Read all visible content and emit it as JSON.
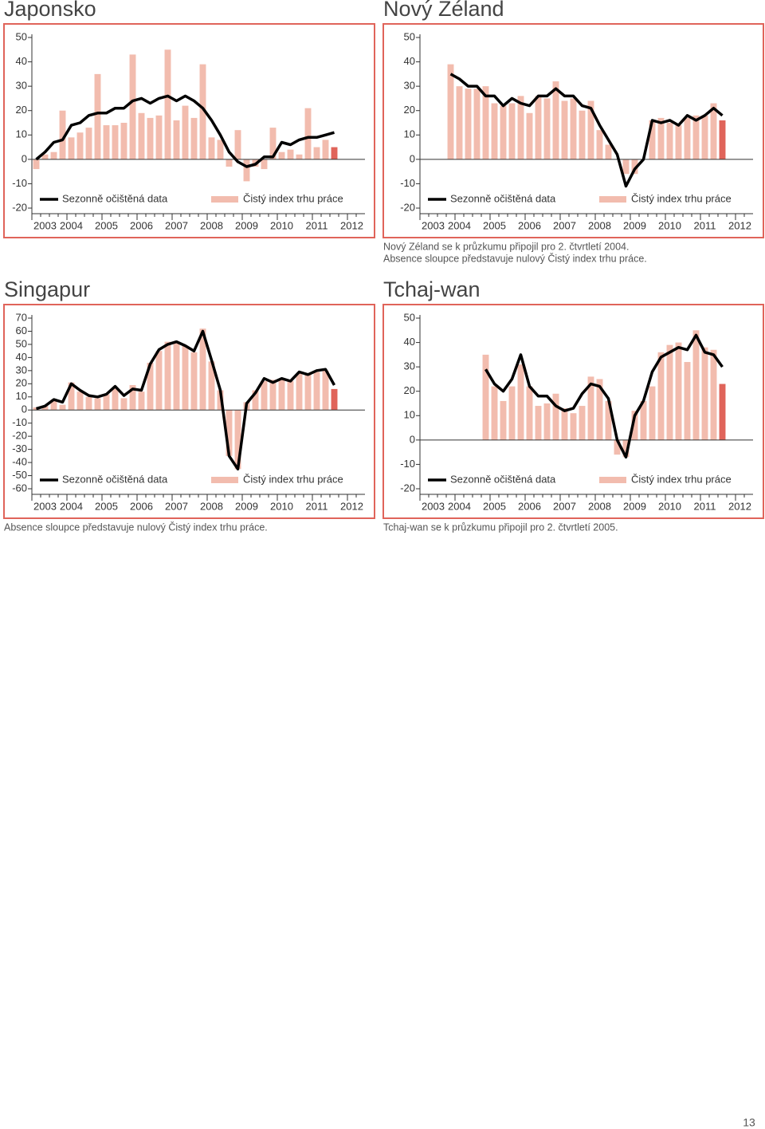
{
  "chart_data": [
    {
      "type": "bar_line",
      "title": "Japonsko",
      "categories": [
        null,
        "2003",
        null,
        null,
        "2004",
        null,
        null,
        null,
        "2005",
        null,
        null,
        null,
        "2006",
        null,
        null,
        null,
        "2007",
        null,
        null,
        null,
        "2008",
        null,
        null,
        null,
        "2009",
        null,
        null,
        null,
        "2010",
        null,
        null,
        null,
        "2011",
        null,
        null,
        null,
        "2012",
        null
      ],
      "ylim": [
        -20,
        50
      ],
      "yticks": [
        -20,
        -10,
        0,
        10,
        20,
        30,
        40,
        50
      ],
      "last_bar_color": "#e0645a",
      "series": [
        {
          "name": "Sezonně očištěná data",
          "kind": "line",
          "color": "#000000",
          "values": [
            0,
            3,
            7,
            8,
            14,
            15,
            18,
            19,
            19,
            21,
            21,
            24,
            25,
            23,
            25,
            26,
            24,
            26,
            24,
            21,
            16,
            10,
            3,
            -1,
            -3,
            -2,
            1,
            1,
            7,
            6,
            8,
            9,
            9,
            10,
            11,
            null,
            null,
            null
          ]
        },
        {
          "name": "Čistý index trhu práce",
          "kind": "bar",
          "color": "#f2bcae",
          "values": [
            -4,
            2,
            3,
            20,
            9,
            11,
            13,
            35,
            14,
            14,
            15,
            43,
            19,
            17,
            18,
            45,
            16,
            22,
            17,
            39,
            9,
            8,
            -3,
            12,
            -9,
            -3,
            -4,
            13,
            3,
            4,
            2,
            21,
            5,
            8,
            5,
            null,
            null,
            null
          ]
        }
      ]
    },
    {
      "type": "bar_line",
      "title": "Nový Zéland",
      "note": [
        "Nový Zéland se k průzkumu připojil pro 2. čtvrtletí 2004.",
        "Absence sloupce představuje nulový Čistý index trhu práce."
      ],
      "categories": [
        null,
        "2003",
        null,
        null,
        "2004",
        null,
        null,
        null,
        "2005",
        null,
        null,
        null,
        "2006",
        null,
        null,
        null,
        "2007",
        null,
        null,
        null,
        "2008",
        null,
        null,
        null,
        "2009",
        null,
        null,
        null,
        "2010",
        null,
        null,
        null,
        "2011",
        null,
        null,
        null,
        "2012",
        null
      ],
      "ylim": [
        -20,
        50
      ],
      "yticks": [
        -20,
        -10,
        0,
        10,
        20,
        30,
        40,
        50
      ],
      "last_bar_color": "#e0645a",
      "series": [
        {
          "name": "Sezonně očištěná data",
          "kind": "line",
          "color": "#000000",
          "values": [
            null,
            null,
            null,
            35,
            33,
            30,
            30,
            26,
            26,
            22,
            25,
            23,
            22,
            26,
            26,
            29,
            26,
            26,
            22,
            21,
            14,
            8,
            2,
            -11,
            -4,
            0,
            16,
            15,
            16,
            14,
            18,
            16,
            18,
            21,
            18,
            null,
            null,
            null
          ]
        },
        {
          "name": "Čistý index trhu práce",
          "kind": "bar",
          "color": "#f2bcae",
          "values": [
            null,
            null,
            null,
            39,
            30,
            29,
            29,
            30,
            23,
            22,
            23,
            26,
            19,
            26,
            25,
            32,
            24,
            25,
            20,
            24,
            12,
            6,
            0,
            -6,
            -6,
            0,
            16,
            17,
            15,
            14,
            17,
            18,
            18,
            23,
            16,
            null,
            null,
            null
          ]
        }
      ]
    },
    {
      "type": "bar_line",
      "title": "Singapur",
      "note": [
        "Absence sloupce představuje nulový Čistý index trhu práce."
      ],
      "categories": [
        null,
        "2003",
        null,
        null,
        "2004",
        null,
        null,
        null,
        "2005",
        null,
        null,
        null,
        "2006",
        null,
        null,
        null,
        "2007",
        null,
        null,
        null,
        "2008",
        null,
        null,
        null,
        "2009",
        null,
        null,
        null,
        "2010",
        null,
        null,
        null,
        "2011",
        null,
        null,
        null,
        "2012",
        null
      ],
      "ylim": [
        -60,
        70
      ],
      "yticks": [
        -60,
        -50,
        -40,
        -30,
        -20,
        -10,
        0,
        10,
        20,
        30,
        40,
        50,
        60,
        70
      ],
      "last_bar_color": "#e0645a",
      "series": [
        {
          "name": "Sezonně očištěná data",
          "kind": "line",
          "color": "#000000",
          "values": [
            1,
            3,
            8,
            6,
            20,
            15,
            11,
            10,
            12,
            18,
            11,
            16,
            15,
            35,
            46,
            50,
            52,
            49,
            45,
            60,
            38,
            15,
            -35,
            -45,
            5,
            13,
            24,
            21,
            24,
            22,
            29,
            27,
            30,
            31,
            19,
            null,
            null,
            null
          ]
        },
        {
          "name": "Čistý index trhu práce",
          "kind": "bar",
          "color": "#f2bcae",
          "values": [
            2,
            3,
            8,
            4,
            21,
            14,
            10,
            9,
            12,
            17,
            9,
            19,
            14,
            36,
            45,
            52,
            52,
            49,
            44,
            62,
            37,
            15,
            -35,
            -45,
            6,
            15,
            22,
            23,
            24,
            22,
            28,
            27,
            29,
            30,
            16,
            null,
            null,
            null
          ]
        }
      ]
    },
    {
      "type": "bar_line",
      "title": "Tchaj-wan",
      "note": [
        "Tchaj-wan se k průzkumu připojil pro 2. čtvrtletí 2005."
      ],
      "categories": [
        null,
        "2003",
        null,
        null,
        "2004",
        null,
        null,
        null,
        "2005",
        null,
        null,
        null,
        "2006",
        null,
        null,
        null,
        "2007",
        null,
        null,
        null,
        "2008",
        null,
        null,
        null,
        "2009",
        null,
        null,
        null,
        "2010",
        null,
        null,
        null,
        "2011",
        null,
        null,
        null,
        "2012",
        null
      ],
      "ylim": [
        -20,
        50
      ],
      "yticks": [
        -20,
        -10,
        0,
        10,
        20,
        30,
        40,
        50
      ],
      "last_bar_color": "#e0645a",
      "series": [
        {
          "name": "Sezonně očištěná data",
          "kind": "line",
          "color": "#000000",
          "values": [
            null,
            null,
            null,
            null,
            null,
            null,
            null,
            29,
            23,
            20,
            25,
            35,
            22,
            18,
            18,
            14,
            12,
            13,
            19,
            23,
            22,
            17,
            0,
            -7,
            10,
            16,
            28,
            34,
            36,
            38,
            37,
            43,
            36,
            35,
            30,
            null,
            null,
            null
          ]
        },
        {
          "name": "Čistý index trhu práce",
          "kind": "bar",
          "color": "#f2bcae",
          "values": [
            null,
            null,
            null,
            null,
            null,
            null,
            null,
            35,
            22,
            16,
            22,
            31,
            22,
            14,
            15,
            19,
            13,
            11,
            14,
            26,
            25,
            16,
            -6,
            -7,
            12,
            16,
            22,
            36,
            39,
            40,
            32,
            45,
            38,
            37,
            23,
            null,
            null,
            null
          ]
        }
      ]
    }
  ],
  "page_number": "13"
}
